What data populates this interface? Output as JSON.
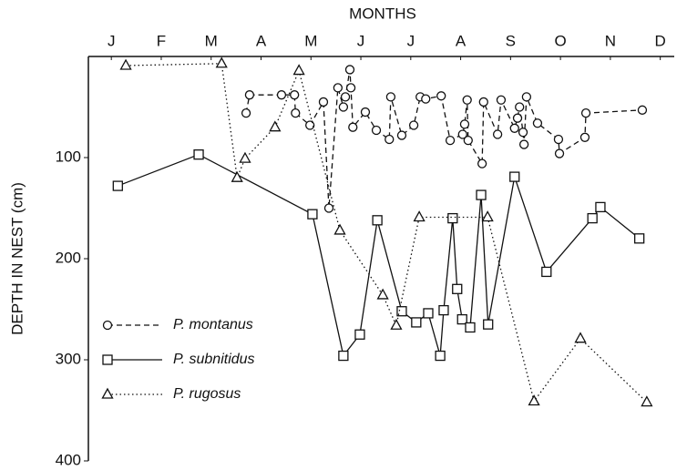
{
  "chart_data": {
    "type": "line",
    "x_label": "MONTHS",
    "y_label": "DEPTH IN NEST (cm)",
    "xlim": [
      -0.46,
      11.28
    ],
    "xticks": [
      {
        "value": 0,
        "label": "J"
      },
      {
        "value": 1,
        "label": "F"
      },
      {
        "value": 2,
        "label": "M"
      },
      {
        "value": 3,
        "label": "A"
      },
      {
        "value": 4,
        "label": "M"
      },
      {
        "value": 5,
        "label": "J"
      },
      {
        "value": 6,
        "label": "J"
      },
      {
        "value": 7,
        "label": "A"
      },
      {
        "value": 8,
        "label": "S"
      },
      {
        "value": 9,
        "label": "O"
      },
      {
        "value": 10,
        "label": "N"
      },
      {
        "value": 11,
        "label": "D"
      }
    ],
    "ylim": [
      0,
      400
    ],
    "yticks": [
      100,
      200,
      300,
      400
    ],
    "y_inverted": true,
    "legend_position": "lower left",
    "series": [
      {
        "name": "P. montanus",
        "color": "#111111",
        "dash": "dashed",
        "marker": "circle",
        "x": [
          2.7,
          2.77,
          3.41,
          3.67,
          3.69,
          3.98,
          4.25,
          4.36,
          4.54,
          4.65,
          4.69,
          4.78,
          4.8,
          4.84,
          5.09,
          5.31,
          5.57,
          5.6,
          5.82,
          6.06,
          6.19,
          6.3,
          6.61,
          6.79,
          7.04,
          7.08,
          7.13,
          7.15,
          7.43,
          7.46,
          7.74,
          7.81,
          8.08,
          8.14,
          8.18,
          8.25,
          8.27,
          8.32,
          8.54,
          8.96,
          8.98,
          9.49,
          9.51,
          10.64
        ],
        "values": [
          56,
          38,
          38,
          38,
          56,
          68,
          45,
          150,
          31,
          50,
          40,
          13,
          31,
          70,
          55,
          73,
          82,
          40,
          78,
          68,
          40,
          42,
          39,
          83,
          77,
          67,
          43,
          83,
          106,
          45,
          77,
          43,
          71,
          61,
          50,
          75,
          87,
          40,
          66,
          82,
          96,
          80,
          56,
          53
        ]
      },
      {
        "name": "P. subnitidus",
        "color": "#111111",
        "dash": "solid",
        "marker": "square",
        "x": [
          0.13,
          1.75,
          4.03,
          4.65,
          4.98,
          5.33,
          5.82,
          6.11,
          6.35,
          6.59,
          6.66,
          6.84,
          6.93,
          7.03,
          7.19,
          7.41,
          7.55,
          8.08,
          8.72,
          9.64,
          9.8,
          10.58
        ],
        "values": [
          128,
          97,
          156,
          296,
          275,
          162,
          252,
          263,
          254,
          296,
          251,
          160,
          230,
          260,
          268,
          137,
          265,
          119,
          213,
          160,
          149,
          180
        ]
      },
      {
        "name": "P. rugosus",
        "color": "#111111",
        "dash": "dotted",
        "marker": "triangle",
        "x": [
          0.29,
          2.21,
          2.52,
          2.68,
          3.28,
          3.76,
          4.58,
          5.44,
          5.71,
          6.17,
          7.54,
          8.47,
          9.4,
          10.73
        ],
        "values": [
          9,
          7,
          120,
          101,
          70,
          14,
          172,
          236,
          266,
          159,
          159,
          341,
          279,
          342
        ]
      }
    ]
  }
}
